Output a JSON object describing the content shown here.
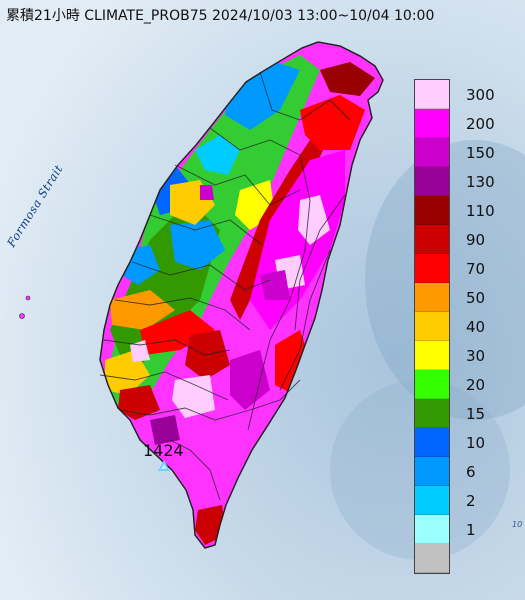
{
  "title": "累積21小時 CLIMATE_PROB75 2024/10/03 13:00~10/04 10:00",
  "sea_label": "Formosa Strait",
  "max_value": "1424",
  "edge_text": "10",
  "legend": {
    "items": [
      {
        "label": "300",
        "color": "#ffccff"
      },
      {
        "label": "200",
        "color": "#ff00ff"
      },
      {
        "label": "150",
        "color": "#cc00cc"
      },
      {
        "label": "130",
        "color": "#990099"
      },
      {
        "label": "110",
        "color": "#990000"
      },
      {
        "label": "90",
        "color": "#cc0000"
      },
      {
        "label": "70",
        "color": "#ff0000"
      },
      {
        "label": "50",
        "color": "#ff9900"
      },
      {
        "label": "40",
        "color": "#ffcc00"
      },
      {
        "label": "30",
        "color": "#ffff00"
      },
      {
        "label": "20",
        "color": "#33ff00"
      },
      {
        "label": "15",
        "color": "#339900"
      },
      {
        "label": "10",
        "color": "#0066ff"
      },
      {
        "label": "6",
        "color": "#0099ff"
      },
      {
        "label": "2",
        "color": "#00ccff"
      },
      {
        "label": "1",
        "color": "#99ffff"
      },
      {
        "label": "",
        "color": "#c0c0c0"
      }
    ]
  },
  "colors": {
    "sea": "#d8e6f2",
    "border": "#222222"
  }
}
